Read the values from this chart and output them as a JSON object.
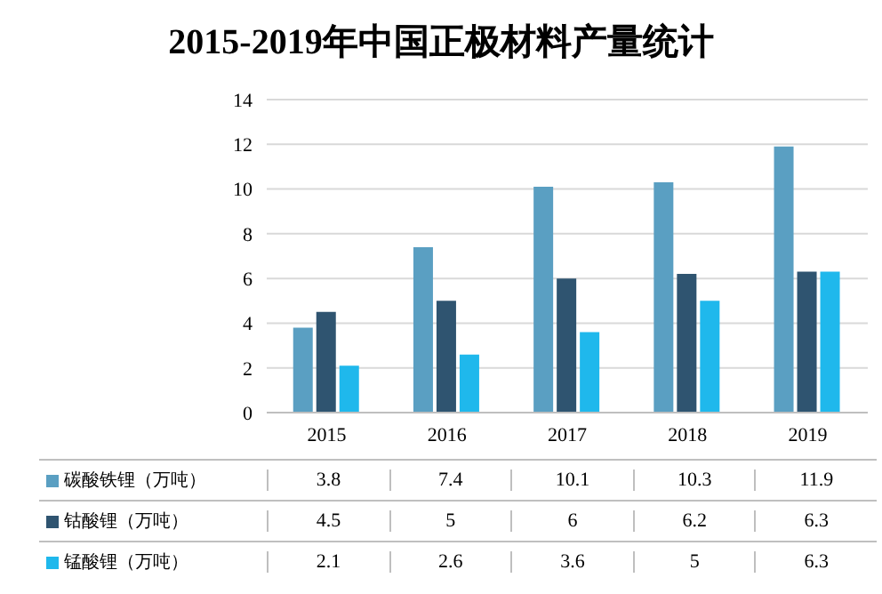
{
  "chart_data": {
    "type": "bar",
    "title": "2015-2019年中国正极材料产量统计",
    "categories": [
      "2015",
      "2016",
      "2017",
      "2018",
      "2019"
    ],
    "series": [
      {
        "name": "碳酸铁锂（万吨）",
        "color": "#5a9fc2",
        "values": [
          3.8,
          7.4,
          10.1,
          10.3,
          11.9
        ]
      },
      {
        "name": "钴酸锂（万吨）",
        "color": "#2f5470",
        "values": [
          4.5,
          5,
          6,
          6.2,
          6.3
        ]
      },
      {
        "name": "锰酸锂（万吨）",
        "color": "#1fb8ec",
        "values": [
          2.1,
          2.6,
          3.6,
          5,
          6.3
        ]
      }
    ],
    "ylim": [
      0,
      14
    ],
    "yticks": [
      0,
      2,
      4,
      6,
      8,
      10,
      12,
      14
    ],
    "grid": "y",
    "legend": "bottom",
    "data_labels": true
  }
}
